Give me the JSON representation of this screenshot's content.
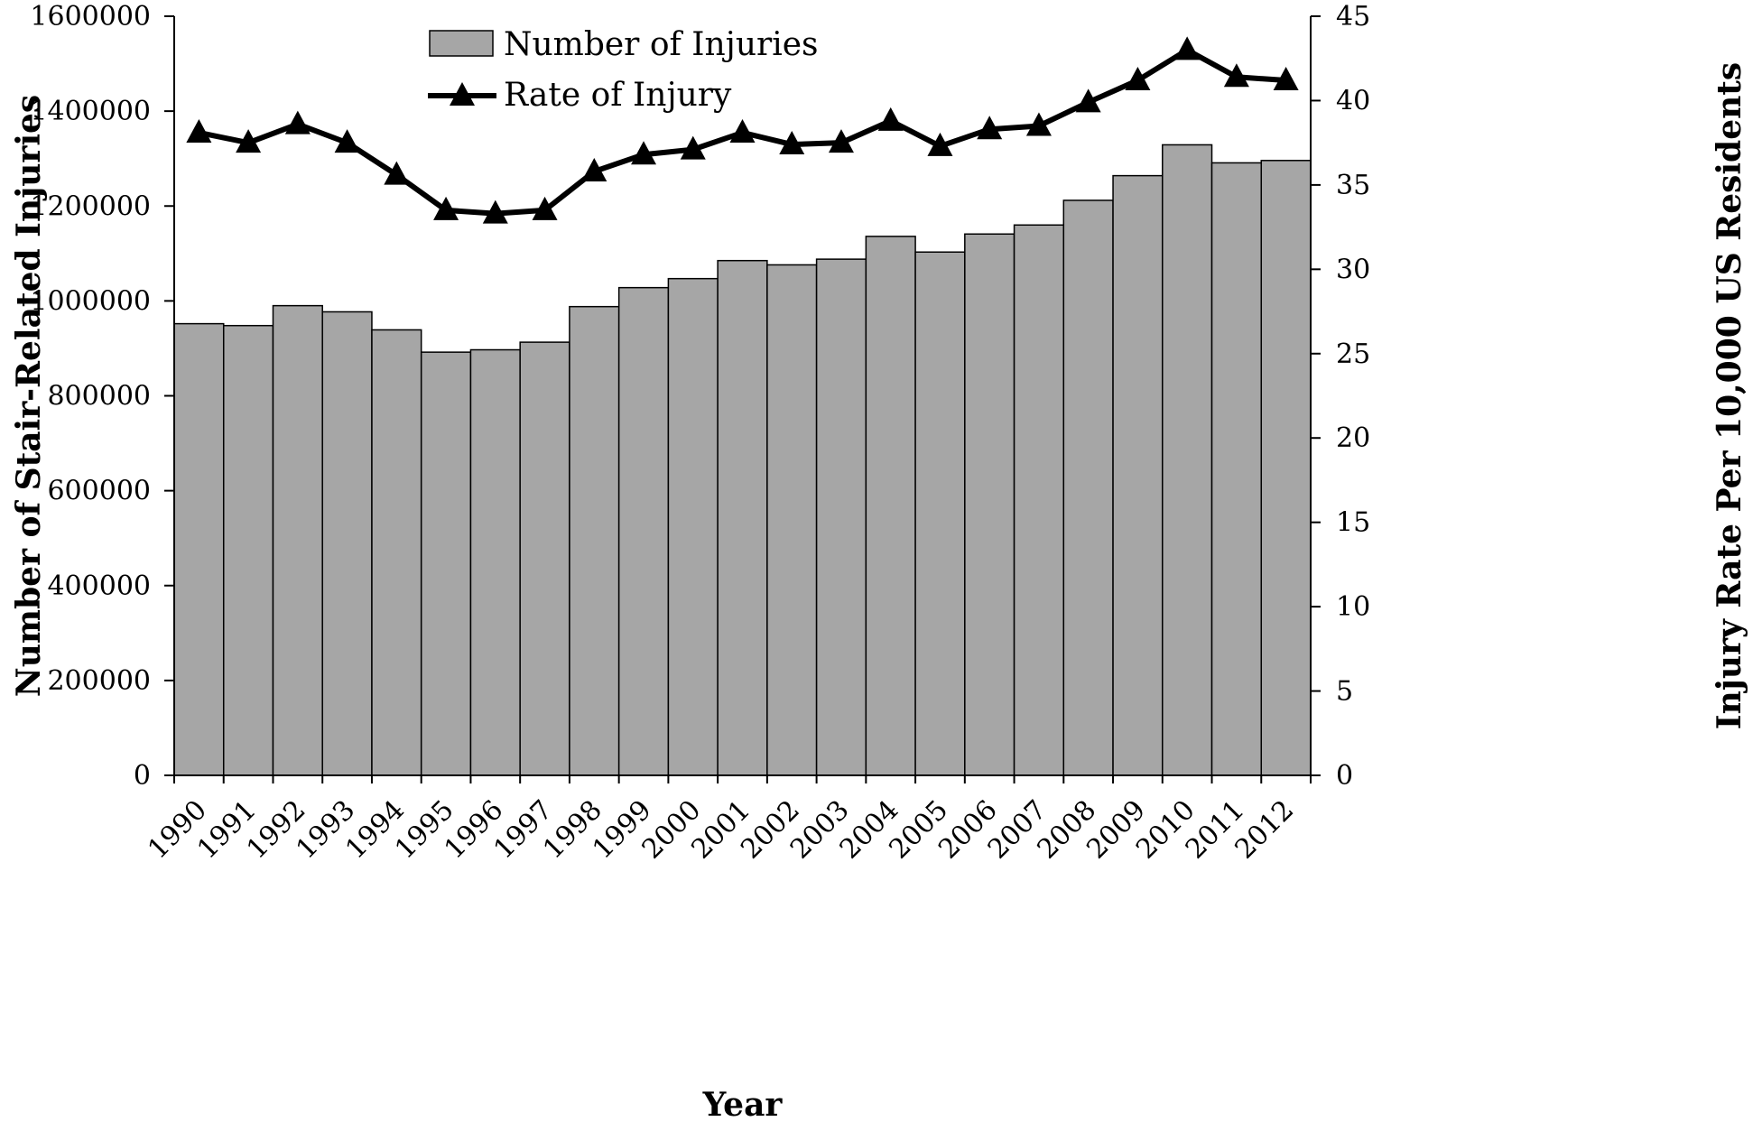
{
  "chart_data": {
    "type": "bar",
    "xlabel": "Year",
    "ylabel": "Number of Stair-Related Injuries",
    "y2label": "Injury Rate Per 10,000 US Residents",
    "ylim": [
      0,
      1600000
    ],
    "y2lim": [
      0,
      45
    ],
    "yticks": [
      "0",
      "200000",
      "400000",
      "600000",
      "800000",
      "1000000",
      "1200000",
      "1400000",
      "1600000"
    ],
    "y2ticks": [
      "0",
      "5",
      "10",
      "15",
      "20",
      "25",
      "30",
      "35",
      "40",
      "45"
    ],
    "grid": false,
    "legend_position": "top-left",
    "categories": [
      "1990",
      "1991",
      "1992",
      "1993",
      "1994",
      "1995",
      "1996",
      "1997",
      "1998",
      "1999",
      "2000",
      "2001",
      "2002",
      "2003",
      "2004",
      "2005",
      "2006",
      "2007",
      "2008",
      "2009",
      "2010",
      "2011",
      "2012"
    ],
    "series": [
      {
        "name": "Number of Injuries",
        "type": "bar",
        "axis": "left",
        "color": "#a6a6a6",
        "values": [
          952000,
          948000,
          990000,
          977000,
          939000,
          892000,
          897000,
          913000,
          988000,
          1028000,
          1047000,
          1085000,
          1076000,
          1088000,
          1136000,
          1103000,
          1141000,
          1160000,
          1212000,
          1264000,
          1329000,
          1291000,
          1296000
        ]
      },
      {
        "name": "Rate of Injury",
        "type": "line",
        "axis": "right",
        "color": "#000000",
        "marker": "triangle",
        "values": [
          38.1,
          37.5,
          38.6,
          37.5,
          35.6,
          33.5,
          33.3,
          33.5,
          35.8,
          36.8,
          37.1,
          38.1,
          37.4,
          37.5,
          38.8,
          37.3,
          38.3,
          38.5,
          39.9,
          41.2,
          43.0,
          41.4,
          41.2
        ]
      }
    ]
  }
}
